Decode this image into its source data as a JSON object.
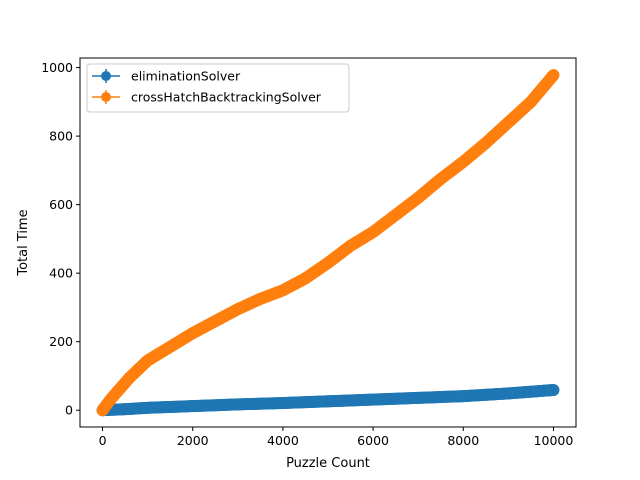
{
  "chart_data": {
    "type": "line",
    "title": "",
    "xlabel": "Puzzle Count",
    "ylabel": "Total Time",
    "xlim": [
      -500,
      10500
    ],
    "ylim": [
      -49,
      1028
    ],
    "xticks": [
      0,
      2000,
      4000,
      6000,
      8000,
      10000
    ],
    "yticks": [
      0,
      200,
      400,
      600,
      800,
      1000
    ],
    "grid": false,
    "legend_position": "upper-left",
    "markers": "filled circles with error bars",
    "series": [
      {
        "name": "eliminationSolver",
        "color": "#1f77b4",
        "x": [
          0,
          500,
          1000,
          2000,
          3000,
          4000,
          5000,
          6000,
          7000,
          8000,
          9000,
          10000
        ],
        "y": [
          0,
          3,
          7,
          12,
          17,
          21,
          26,
          31,
          36,
          41,
          49,
          59
        ]
      },
      {
        "name": "crossHatchBacktrackingSolver",
        "color": "#ff7f0e",
        "x": [
          0,
          100,
          200,
          400,
          600,
          800,
          1000,
          1500,
          2000,
          2500,
          3000,
          3500,
          4000,
          4500,
          5000,
          5500,
          6000,
          6500,
          7000,
          7500,
          8000,
          8500,
          9000,
          9500,
          10000
        ],
        "y": [
          0,
          18,
          35,
          65,
          95,
          120,
          145,
          185,
          225,
          260,
          295,
          325,
          350,
          385,
          430,
          480,
          520,
          570,
          620,
          675,
          725,
          780,
          840,
          900,
          978
        ]
      }
    ]
  }
}
